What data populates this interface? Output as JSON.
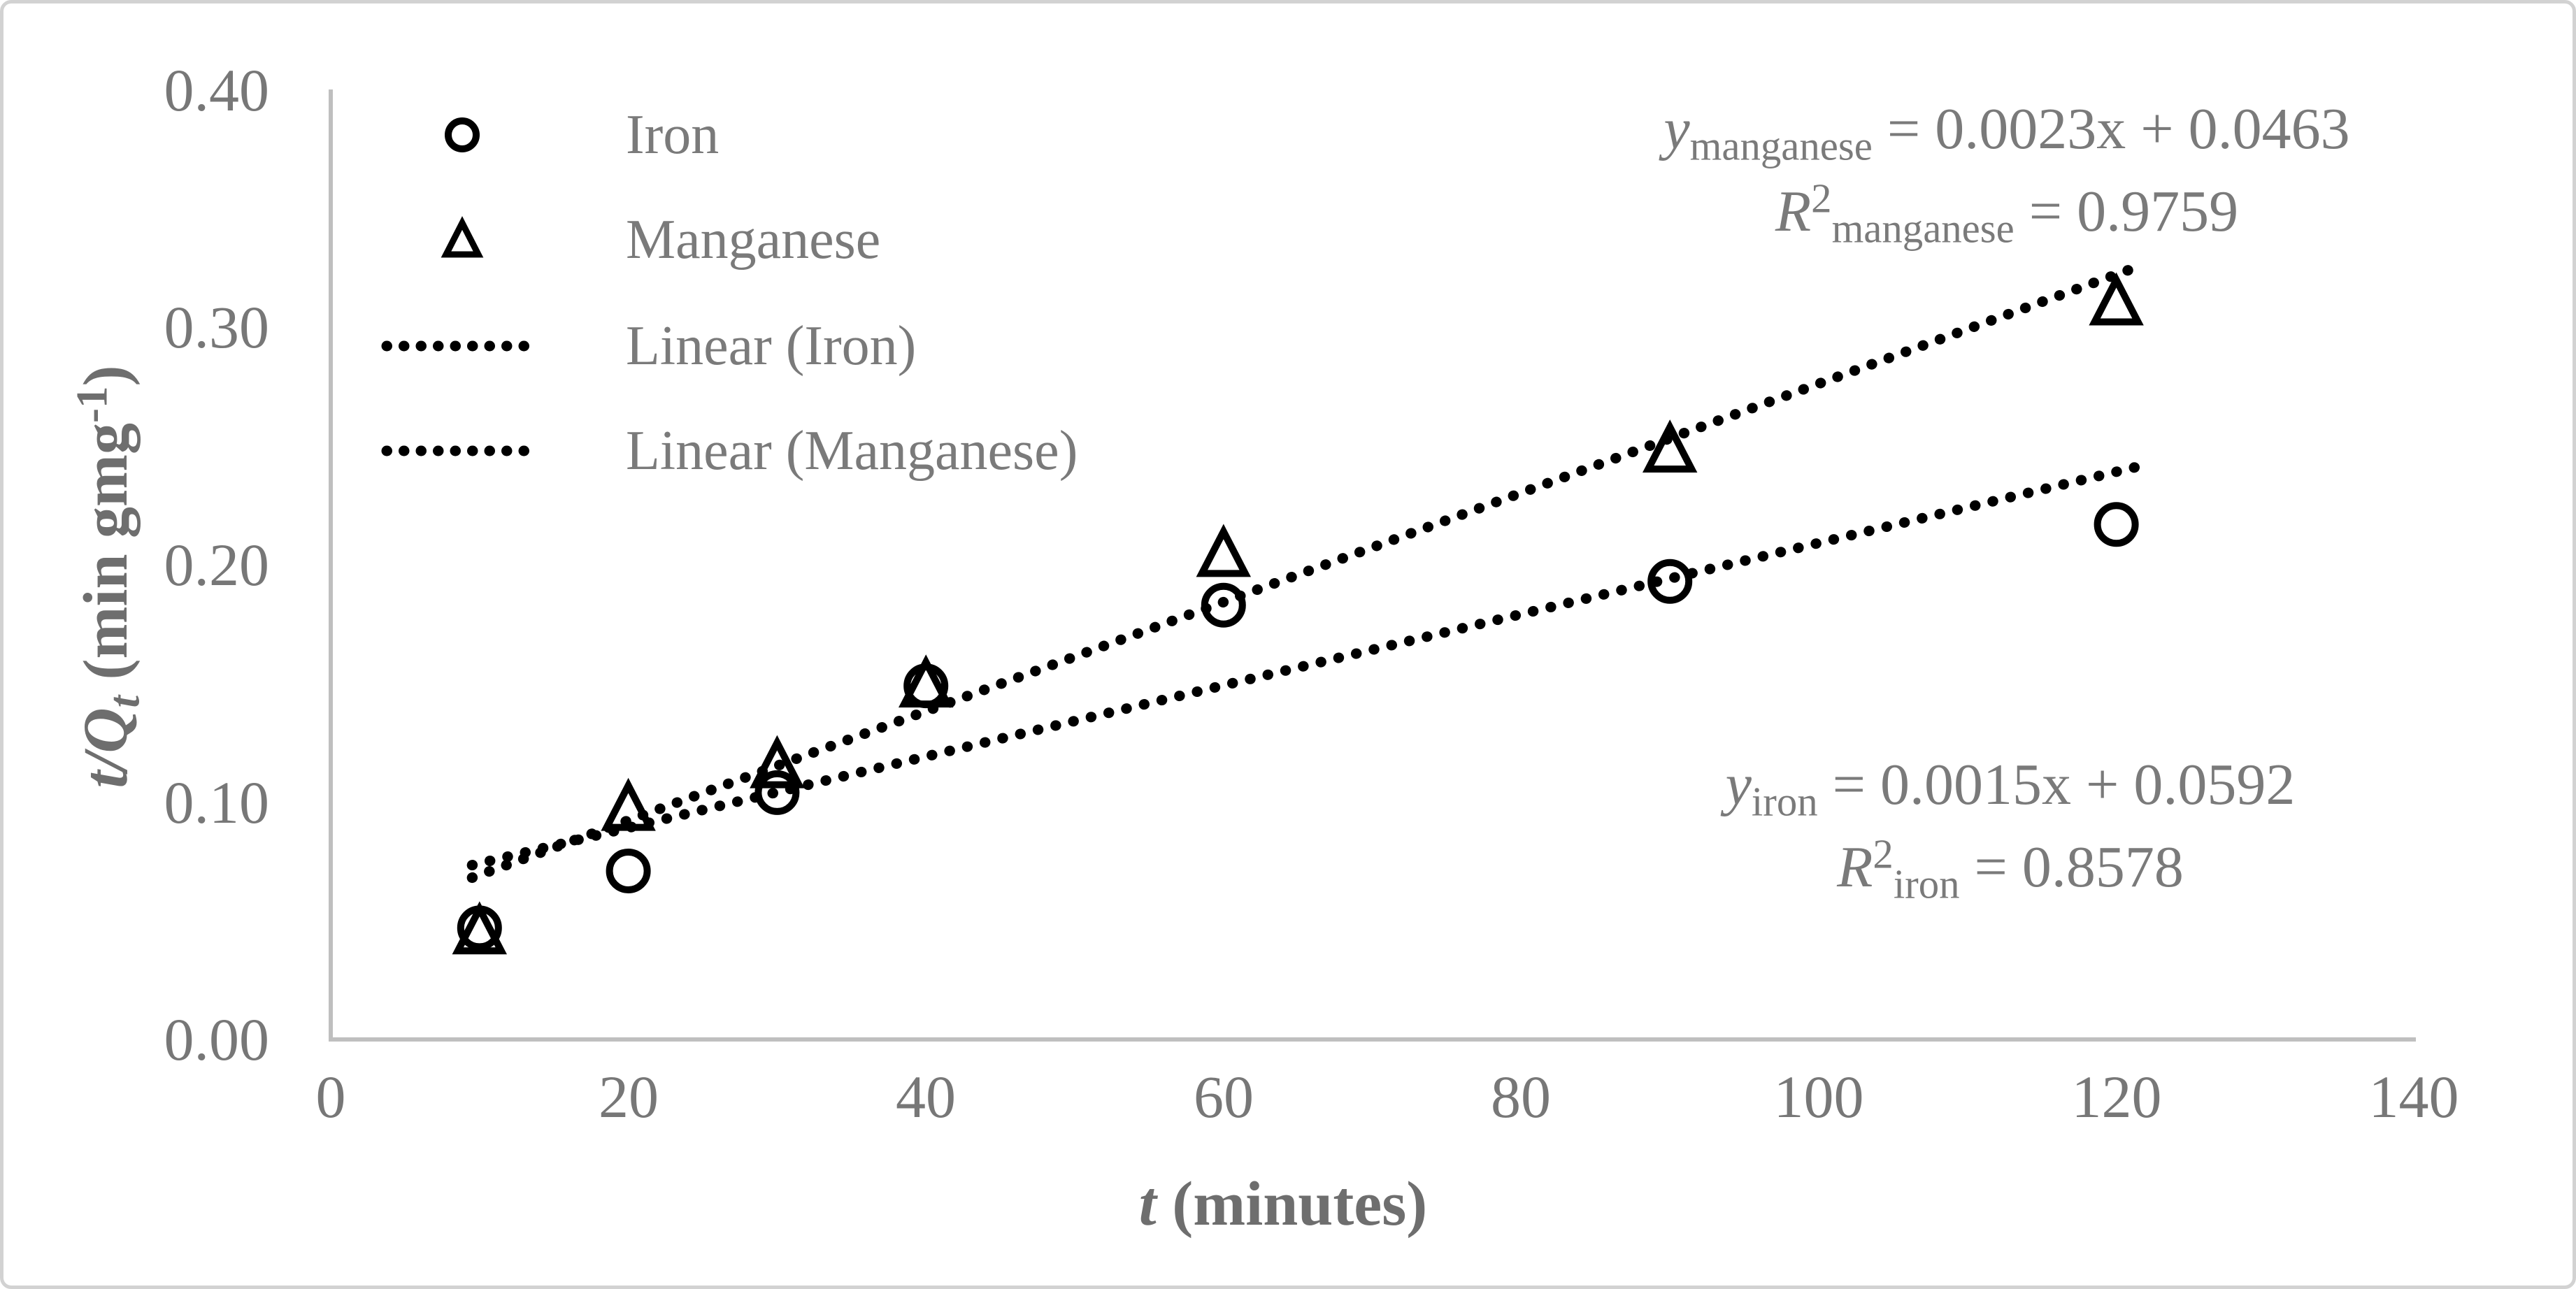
{
  "figure": {
    "background": "#ffffff",
    "border_color": "#d2d2d2"
  },
  "colors": {
    "text_gray": "#777777",
    "axis_title_gray": "#6e6e6e",
    "axis_line_gray": "#bfbfbf",
    "marker_black": "#000000"
  },
  "chart_data": {
    "type": "scatter",
    "title": "",
    "xlabel_parts": {
      "italic": "t",
      "rest": " (minutes)"
    },
    "ylabel_parts": {
      "italic_lead": "t/Q",
      "sub_italic": "t",
      "rest": " (min gmg",
      "sup": "-1",
      "close": ")"
    },
    "xlim": [
      0,
      140
    ],
    "ylim": [
      0.0,
      0.4
    ],
    "x_ticks": [
      "0",
      "20",
      "40",
      "60",
      "80",
      "100",
      "120",
      "140"
    ],
    "y_ticks": [
      "0.40",
      "0.30",
      "0.20",
      "0.10",
      "0.00"
    ],
    "grid": false,
    "legend_position": "upper-left-inside",
    "series": [
      {
        "name": "Iron",
        "marker": "circle",
        "x": [
          10,
          20,
          30,
          40,
          60,
          90,
          120
        ],
        "y": [
          0.047,
          0.071,
          0.104,
          0.149,
          0.183,
          0.193,
          0.217
        ]
      },
      {
        "name": "Manganese",
        "marker": "triangle",
        "x": [
          10,
          20,
          30,
          40,
          60,
          90,
          120
        ],
        "y": [
          0.045,
          0.097,
          0.115,
          0.149,
          0.204,
          0.248,
          0.31
        ]
      }
    ],
    "trendlines": [
      {
        "name": "Linear (Iron)",
        "style": "dotted",
        "slope": 0.0015,
        "intercept": 0.0592,
        "x_start": 9.5,
        "x_end": 121.5
      },
      {
        "name": "Linear (Manganese)",
        "style": "dotted",
        "slope": 0.0023,
        "intercept": 0.0463,
        "x_start": 9.5,
        "x_end": 121.5
      }
    ],
    "legend": [
      {
        "label": "Iron",
        "swatch": "circle"
      },
      {
        "label": "Manganese",
        "swatch": "triangle"
      },
      {
        "label": "Linear (Iron)",
        "swatch": "dots"
      },
      {
        "label": "Linear (Manganese)",
        "swatch": "dots"
      }
    ],
    "annotations": [
      {
        "lead": "y",
        "sub": "manganese",
        "rest": " = 0.0023x + 0.0463"
      },
      {
        "lead": "R",
        "sup": "2",
        "sub": "manganese",
        "rest": " = 0.9759"
      },
      {
        "lead": "y",
        "sub": "iron",
        "rest": " = 0.0015x + 0.0592"
      },
      {
        "lead": "R",
        "sup": "2",
        "sub": "iron",
        "rest": " = 0.8578"
      }
    ]
  }
}
